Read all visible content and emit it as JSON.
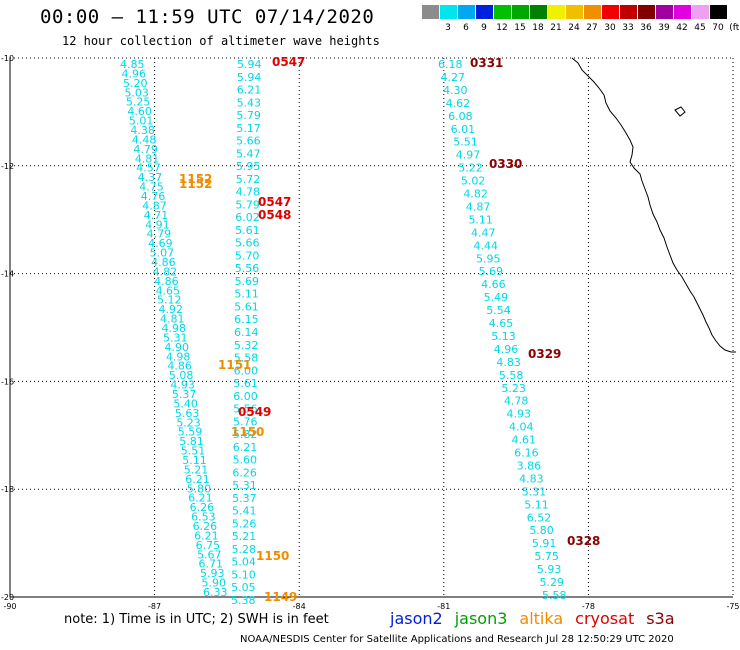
{
  "title": "00:00 – 11:59 UTC 07/14/2020",
  "subtitle": "12 hour collection of altimeter wave heights",
  "colorbar": {
    "unit_label": "(ft)",
    "bins": [
      {
        "label": "3",
        "color": "#8c8c8c"
      },
      {
        "label": "6",
        "color": "#00e5ee"
      },
      {
        "label": "9",
        "color": "#00a8f0"
      },
      {
        "label": "12",
        "color": "#0020e0"
      },
      {
        "label": "15",
        "color": "#00c000"
      },
      {
        "label": "18",
        "color": "#00a800"
      },
      {
        "label": "21",
        "color": "#008000"
      },
      {
        "label": "24",
        "color": "#f0f000"
      },
      {
        "label": "27",
        "color": "#f0c000"
      },
      {
        "label": "30",
        "color": "#f09000"
      },
      {
        "label": "33",
        "color": "#f00000"
      },
      {
        "label": "36",
        "color": "#c00000"
      },
      {
        "label": "39",
        "color": "#800000"
      },
      {
        "label": "42",
        "color": "#a000a0"
      },
      {
        "label": "45",
        "color": "#e000e0"
      },
      {
        "label": "70",
        "color": "#f0a0f0"
      },
      {
        "label": "",
        "color": "#000000"
      }
    ]
  },
  "axes": {
    "lon_ticks": [
      "-90",
      "-87",
      "-84",
      "-81",
      "-78",
      "-75"
    ],
    "lat_ticks": [
      "-10",
      "-12",
      "-14",
      "-16",
      "-18",
      "-20"
    ],
    "lon_range": [
      -90,
      -75
    ],
    "lat_range": [
      -20,
      -10
    ]
  },
  "colors": {
    "swh": "#00d8e8",
    "time_cryosat": "#e00000",
    "time_altika": "#f08c00",
    "time_s3a": "#8b0000",
    "coast": "#000000"
  },
  "tracks": [
    {
      "name": "track-a",
      "values": [
        "4.85",
        "4.96",
        "5.20",
        "5.03",
        "5.25",
        "4.60",
        "5.01",
        "4.38",
        "4.48",
        "4.79",
        "4.81",
        "4.57",
        "4.37",
        "4.75",
        "4.76",
        "4.87",
        "4.71",
        "4.91",
        "4.79",
        "4.69",
        "5.07",
        "4.86",
        "4.82",
        "4.86",
        "4.65",
        "5.12",
        "4.92",
        "4.81",
        "4.98",
        "5.31",
        "4.90",
        "4.98",
        "4.86",
        "5.08",
        "4.93",
        "5.37",
        "5.40",
        "5.63",
        "5.23",
        "5.59",
        "5.81",
        "5.51",
        "5.11",
        "5.21",
        "6.21",
        "5.80",
        "6.21",
        "6.26",
        "6.53",
        "6.26",
        "6.21",
        "6.75",
        "5.67",
        "6.71",
        "5.93",
        "5.90",
        "6.33"
      ]
    },
    {
      "name": "track-b",
      "values": [
        "5.94",
        "5.94",
        "6.21",
        "5.43",
        "5.79",
        "5.17",
        "5.66",
        "5.47",
        "5.95",
        "5.72",
        "4.78",
        "5.79",
        "6.02",
        "5.61",
        "5.66",
        "5.70",
        "5.56",
        "5.69",
        "5.11",
        "5.61",
        "6.15",
        "6.14",
        "5.32",
        "5.58",
        "6.00",
        "5.61",
        "6.00",
        "5.56",
        "5.76",
        "5.82",
        "6.21",
        "5.60",
        "6.26",
        "5.31",
        "5.37",
        "5.41",
        "5.26",
        "5.21",
        "5.28",
        "5.04",
        "5.10",
        "5.05",
        "5.38"
      ]
    },
    {
      "name": "track-c",
      "values": [
        "6.18",
        "4.27",
        "4.30",
        "4.62",
        "6.08",
        "6.01",
        "5.51",
        "4.97",
        "5.22",
        "5.02",
        "4.82",
        "4.87",
        "5.11",
        "4.47",
        "4.44",
        "5.95",
        "5.69",
        "4.66",
        "5.49",
        "5.54",
        "4.65",
        "5.13",
        "4.96",
        "4.83",
        "5.58",
        "5.23",
        "4.78",
        "4.93",
        "4.04",
        "4.61",
        "6.16",
        "3.86",
        "4.83",
        "5.31",
        "5.11",
        "6.52",
        "5.80",
        "5.91",
        "5.75",
        "5.93",
        "5.29",
        "5.58"
      ]
    }
  ],
  "time_labels": [
    {
      "text": "0547",
      "sat": "cryosat"
    },
    {
      "text": "1152",
      "sat": "altika"
    },
    {
      "text": "1152",
      "sat": "altika"
    },
    {
      "text": "0547",
      "sat": "cryosat"
    },
    {
      "text": "0548",
      "sat": "cryosat"
    },
    {
      "text": "1151",
      "sat": "altika"
    },
    {
      "text": "0549",
      "sat": "cryosat"
    },
    {
      "text": "1150",
      "sat": "altika"
    },
    {
      "text": "1150",
      "sat": "altika"
    },
    {
      "text": "1149",
      "sat": "altika"
    },
    {
      "text": "0331",
      "sat": "s3a"
    },
    {
      "text": "0330",
      "sat": "s3a"
    },
    {
      "text": "0329",
      "sat": "s3a"
    },
    {
      "text": "0328",
      "sat": "s3a"
    }
  ],
  "footer": {
    "note": "note:  1) Time is in UTC;  2) SWH is in feet",
    "credit": "NOAA/NESDIS Center for Satellite Applications and Research     Jul 28 12:50:29 UTC 2020"
  },
  "legend": [
    {
      "label": "jason2",
      "color": "#0020e0"
    },
    {
      "label": "jason3",
      "color": "#00a000"
    },
    {
      "label": "altika",
      "color": "#f08c00"
    },
    {
      "label": "cryosat",
      "color": "#e00000"
    },
    {
      "label": "s3a",
      "color": "#8b0000"
    }
  ]
}
